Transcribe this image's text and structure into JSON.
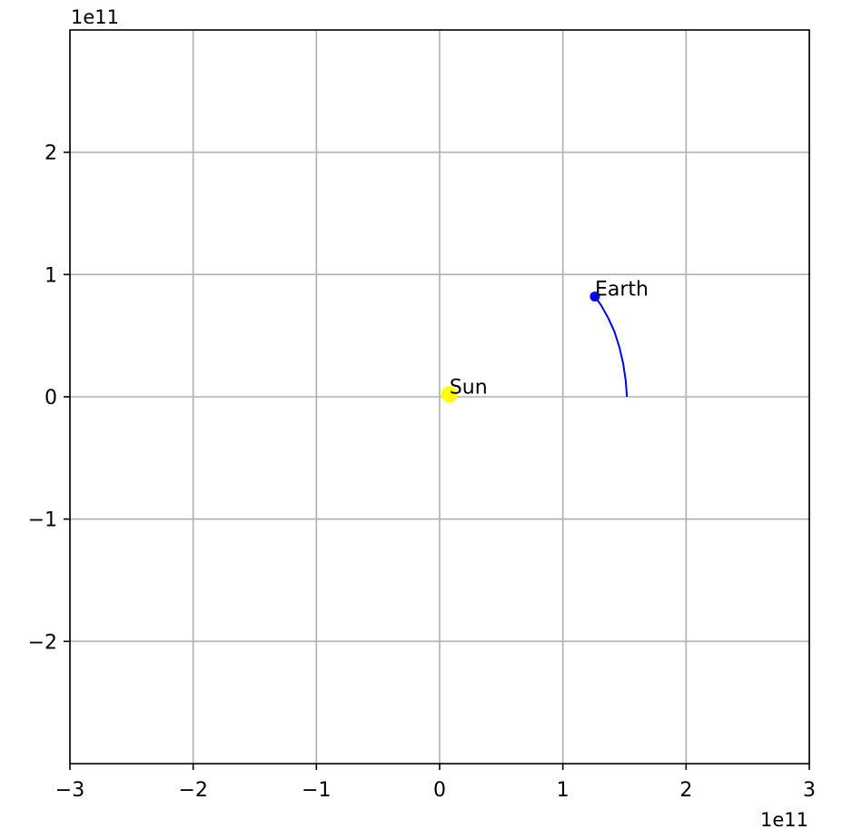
{
  "chart_data": {
    "type": "scatter",
    "title": "",
    "xlabel": "",
    "ylabel": "",
    "xlim": [
      -300000000000.0,
      300000000000.0
    ],
    "ylim": [
      -300000000000.0,
      300000000000.0
    ],
    "x_ticks": [
      -3,
      -2,
      -1,
      0,
      1,
      2,
      3
    ],
    "y_ticks": [
      -2,
      -1,
      0,
      1,
      2
    ],
    "x_tick_labels": [
      "−3",
      "−2",
      "−1",
      "0",
      "1",
      "2",
      "3"
    ],
    "y_tick_labels": [
      "−2",
      "−1",
      "0",
      "1",
      "2"
    ],
    "tick_scale": 100000000000.0,
    "x_offset_text": "1e11",
    "y_offset_text": "1e11",
    "grid": true,
    "bodies": [
      {
        "name": "Sun",
        "x": 8000000000.0,
        "y": 2000000000.0,
        "color": "#ffff00"
      },
      {
        "name": "Earth",
        "x": 126000000000.0,
        "y": 82000000000.0,
        "color": "#0000ff"
      }
    ],
    "trail": {
      "body": "Earth",
      "color": "#0000ff",
      "x": [
        152000000000.0,
        151000000000.0,
        149000000000.0,
        146000000000.0,
        142000000000.0,
        137000000000.0,
        131000000000.0,
        126000000000.0
      ],
      "y": [
        0.0,
        13000000000.0,
        27000000000.0,
        40000000000.0,
        53000000000.0,
        64000000000.0,
        75000000000.0,
        82000000000.0
      ]
    }
  }
}
